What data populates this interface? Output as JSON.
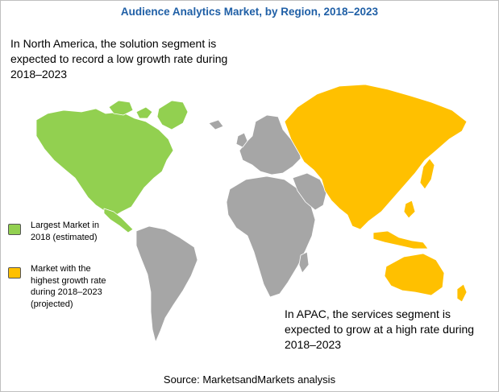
{
  "title": "Audience Analytics Market, by Region, 2018–2023",
  "notes": {
    "north_america": "In North America, the solution segment is\nexpected to record a low growth rate during\n2018–2023",
    "apac": "In APAC, the services segment is\nexpected to grow at a high rate during\n2018–2023"
  },
  "legend": [
    {
      "label": "Largest Market in\n2018 (estimated)",
      "color": "#92d050"
    },
    {
      "label": "Market with the\nhighest growth rate\nduring 2018–2023\n(projected)",
      "color": "#ffc000"
    }
  ],
  "regions": [
    {
      "name": "North America",
      "color": "#92d050",
      "category": "Largest Market in 2018 (estimated)"
    },
    {
      "name": "APAC",
      "color": "#ffc000",
      "category": "Market with the highest growth rate during 2018–2023 (projected)"
    },
    {
      "name": "Europe",
      "color": "#a6a6a6"
    },
    {
      "name": "Middle East & Africa",
      "color": "#a6a6a6"
    },
    {
      "name": "Latin America",
      "color": "#a6a6a6"
    }
  ],
  "source": "Source:  MarketsandMarkets analysis"
}
